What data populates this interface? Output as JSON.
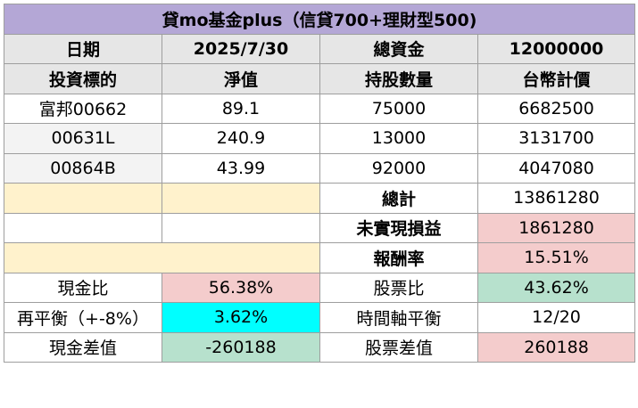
{
  "title": "貸mo基金plus（信貸700+理財型500)",
  "header1": {
    "date_label": "日期",
    "date_value": "2025/7/30",
    "capital_label": "總資金",
    "capital_value": "12000000"
  },
  "header2": {
    "col1": "投資標的",
    "col2": "淨值",
    "col3": "持股數量",
    "col4": "台幣計價"
  },
  "holdings": [
    {
      "name": "富邦00662",
      "nav": "89.1",
      "shares": "75000",
      "value": "6682500"
    },
    {
      "name": "00631L",
      "nav": "240.9",
      "shares": "13000",
      "value": "3131700"
    },
    {
      "name": "00864B",
      "nav": "43.99",
      "shares": "92000",
      "value": "4047080"
    }
  ],
  "summary": {
    "total_label": "總計",
    "total_value": "13861280",
    "unrealized_label": "未實現損益",
    "unrealized_value": "1861280",
    "return_label": "報酬率",
    "return_value": "15.51%"
  },
  "ratios": {
    "cash_ratio_label": "現金比",
    "cash_ratio_value": "56.38%",
    "stock_ratio_label": "股票比",
    "stock_ratio_value": "43.62%",
    "rebalance_label": "再平衡（+-8%）",
    "rebalance_value": "3.62%",
    "timeline_label": "時間軸平衡",
    "timeline_value": "12/20",
    "cash_diff_label": "現金差值",
    "cash_diff_value": "-260188",
    "stock_diff_label": "股票差值",
    "stock_diff_value": "260188"
  },
  "colors": {
    "title_bg": "#b4a7d6",
    "header_bg": "#e6e6e6",
    "cream": "#fff2cc",
    "pink": "#f4cccc",
    "green": "#b7e1cd",
    "cyan": "#00ffff"
  }
}
